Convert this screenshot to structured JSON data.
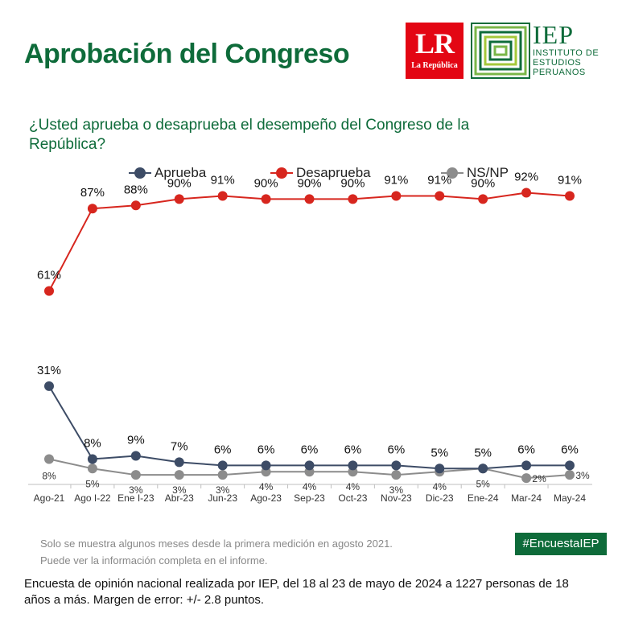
{
  "header": {
    "title": "Aprobación del Congreso",
    "lr_logo_big": "LR",
    "lr_logo_small": "La República",
    "iep_big": "IEP",
    "iep_lines": [
      "INSTITUTO DE",
      "ESTUDIOS",
      "PERUANOS"
    ],
    "brand_red": "#e30613",
    "brand_green": "#0e6b3a"
  },
  "question": "¿Usted aprueba o desaprueba el desempeño del Congreso de la República?",
  "chart_data": {
    "type": "line",
    "title": "",
    "xlabel": "",
    "ylabel": "",
    "ylim": [
      0,
      100
    ],
    "grid": false,
    "legend_position": "top",
    "categories": [
      "Ago-21",
      "Ago I-22",
      "Ene I-23",
      "Abr-23",
      "Jun-23",
      "Ago-23",
      "Sep-23",
      "Oct-23",
      "Nov-23",
      "Dic-23",
      "Ene-24",
      "Mar-24",
      "May-24"
    ],
    "series": [
      {
        "name": "Aprueba",
        "color": "#3d4c66",
        "values": [
          31,
          8,
          9,
          7,
          6,
          6,
          6,
          6,
          6,
          5,
          5,
          6,
          6
        ],
        "labels": [
          "31%",
          "8%",
          "9%",
          "7%",
          "6%",
          "6%",
          "6%",
          "6%",
          "6%",
          "5%",
          "5%",
          "6%",
          "6%"
        ]
      },
      {
        "name": "Desaprueba",
        "color": "#d7261e",
        "values": [
          61,
          87,
          88,
          90,
          91,
          90,
          90,
          90,
          91,
          91,
          90,
          92,
          91
        ],
        "labels": [
          "61%",
          "87%",
          "88%",
          "90%",
          "91%",
          "90%",
          "90%",
          "90%",
          "91%",
          "91%",
          "90%",
          "92%",
          "91%"
        ]
      },
      {
        "name": "NS/NP",
        "color": "#8c8c8c",
        "values": [
          8,
          5,
          3,
          3,
          3,
          4,
          4,
          4,
          3,
          4,
          5,
          2,
          3
        ],
        "labels": [
          "8%",
          "5%",
          "3%",
          "3%",
          "3%",
          "4%",
          "4%",
          "4%",
          "3%",
          "4%",
          "5%",
          "2%",
          "3%"
        ]
      }
    ]
  },
  "footnotes": [
    "Solo se muestra algunos meses desde la primera medición en agosto 2021.",
    "Puede ver la información completa en el informe."
  ],
  "hashtag": "#EncuestaIEP",
  "bottom_note": "Encuesta de opinión nacional realizada por IEP, del 18 al 23 de mayo de 2024 a 1227 personas de 18 años a más. Margen de error: +/- 2.8 puntos."
}
